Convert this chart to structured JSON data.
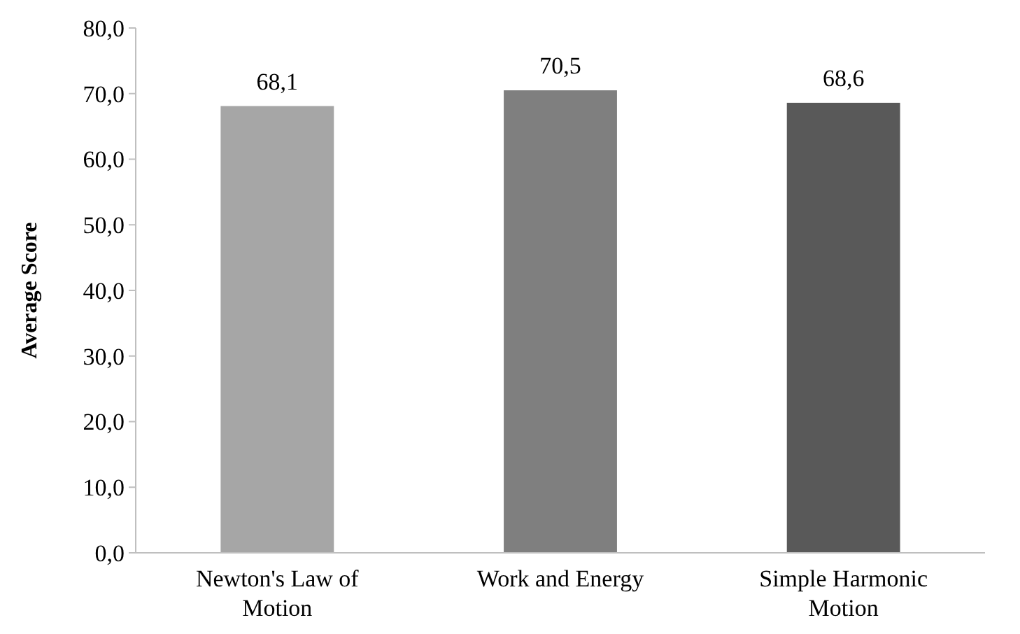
{
  "chart_data": {
    "type": "bar",
    "ylabel": "Average Score",
    "categories": [
      "Newton's Law of Motion",
      "Work and Energy",
      "Simple Harmonic Motion"
    ],
    "values": [
      68.1,
      70.5,
      68.6
    ],
    "colors": [
      "#a6a6a6",
      "#7f7f7f",
      "#595959"
    ],
    "value_labels": [
      "68,1",
      "70,5",
      "68,6"
    ],
    "ylim": [
      0,
      80
    ],
    "yticks": [
      {
        "value": 0,
        "label": "0,0"
      },
      {
        "value": 10,
        "label": "10,0"
      },
      {
        "value": 20,
        "label": "20,0"
      },
      {
        "value": 30,
        "label": "30,0"
      },
      {
        "value": 40,
        "label": "40,0"
      },
      {
        "value": 50,
        "label": "50,0"
      },
      {
        "value": 60,
        "label": "60,0"
      },
      {
        "value": 70,
        "label": "70,0"
      },
      {
        "value": 80,
        "label": "80,0"
      }
    ],
    "grid": false
  }
}
